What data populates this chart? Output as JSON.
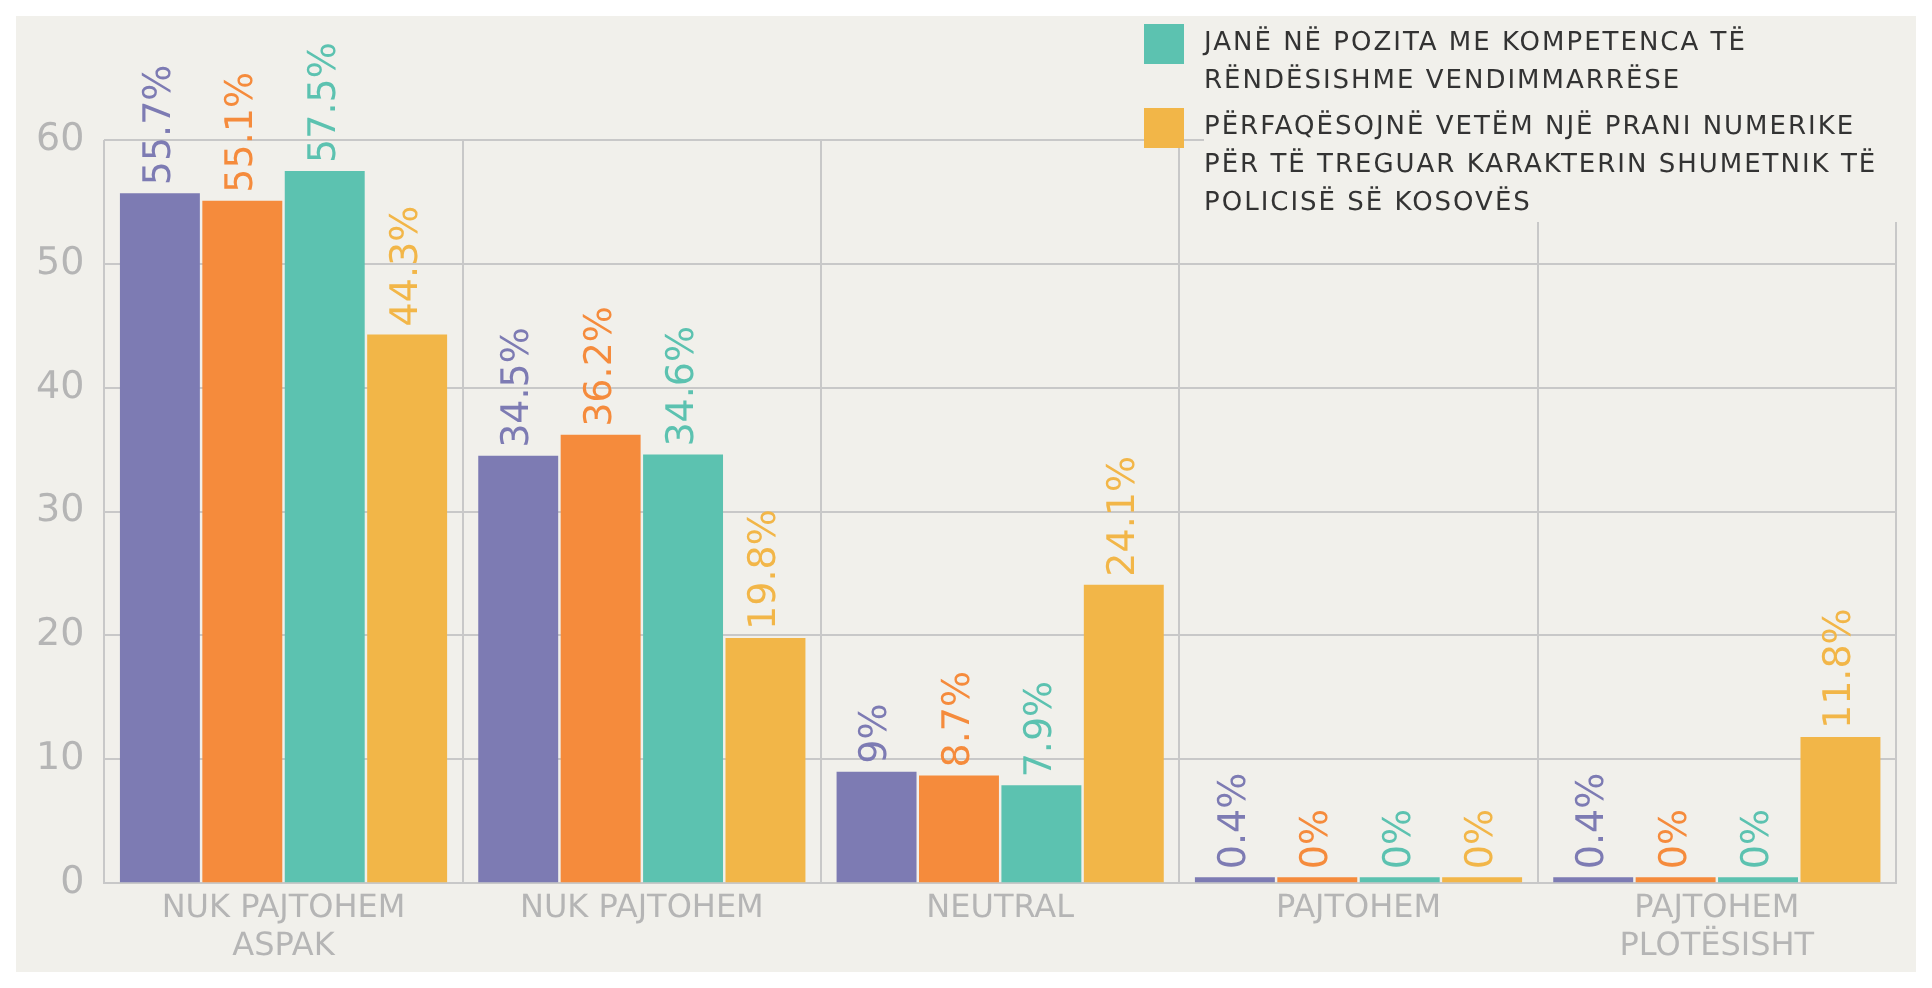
{
  "chart_data": {
    "type": "bar",
    "categories": [
      "NUK PAJTOHEM ASPAK",
      "NUK PAJTOHEM",
      "NEUTRAL",
      "PAJTOHEM",
      "PAJTOHEM PLOTËSISHT"
    ],
    "series": [
      {
        "color": "#7d7bb3",
        "values": [
          55.7,
          34.5,
          9,
          0.4,
          0.4
        ],
        "value_labels": [
          "55.7%",
          "34.5%",
          "9%",
          "0.4%",
          "0.4%"
        ]
      },
      {
        "color": "#f58b3c",
        "values": [
          55.1,
          36.2,
          8.7,
          0,
          0
        ],
        "value_labels": [
          "55.1%",
          "36.2%",
          "8.7%",
          "0%",
          "0%"
        ]
      },
      {
        "name": "JANË NË POZITA ME KOMPETENCA TË RËNDËSISHME VENDIMMARRËSE",
        "color": "#5cc2b0",
        "values": [
          57.5,
          34.6,
          7.9,
          0,
          0
        ],
        "value_labels": [
          "57.5%",
          "34.6%",
          "7.9%",
          "0%",
          "0%"
        ]
      },
      {
        "name": "PËRFAQËSOJNË VETËM NJË PRANI NUMERIKE PËR TË TREGUAR KARAKTERIN SHUMETNIK TË POLICISË SË KOSOVËS",
        "color": "#f2b648",
        "values": [
          44.3,
          19.8,
          24.1,
          0,
          11.8
        ],
        "value_labels": [
          "44.3%",
          "19.8%",
          "24.1%",
          "0%",
          "11.8%"
        ]
      }
    ],
    "ylim": [
      0,
      60
    ],
    "yticks": [
      0,
      10,
      20,
      30,
      40,
      50,
      60
    ],
    "grid": true,
    "legend": "top right"
  }
}
